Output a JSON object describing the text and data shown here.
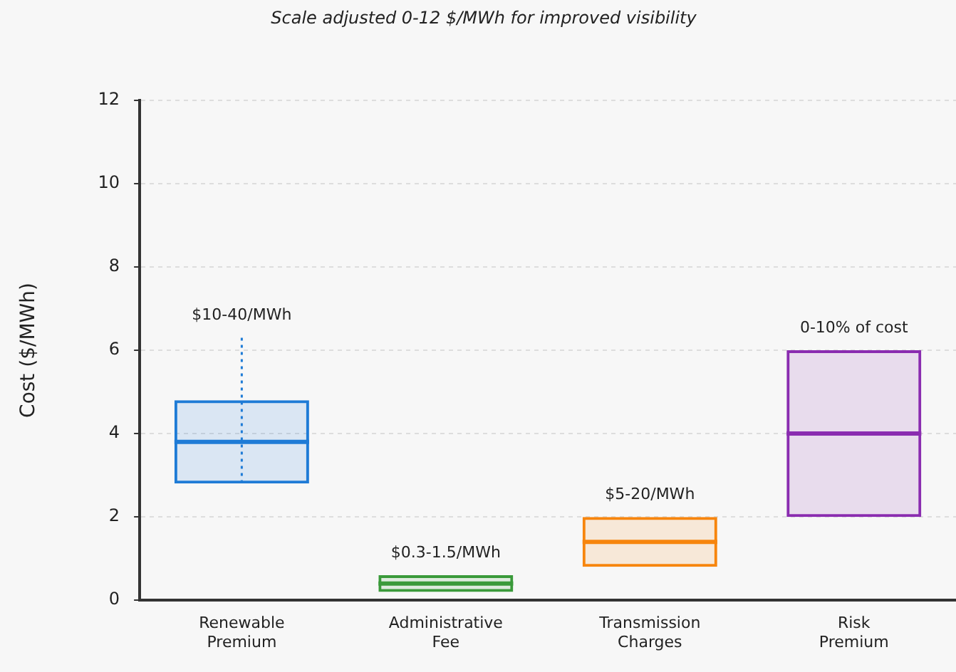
{
  "chart_data": {
    "type": "box",
    "subtitle": "Scale adjusted 0-12 $/MWh for improved visibility",
    "ylabel": "Cost ($/MWh)",
    "categories": [
      "Renewable Premium",
      "Administrative Fee",
      "Transmission Charges",
      "Risk Premium"
    ],
    "boxes": [
      {
        "low": 2.8,
        "q1": 2.8,
        "median": 3.8,
        "q3": 4.8,
        "high": 6.3
      },
      {
        "low": 0.2,
        "q1": 0.2,
        "median": 0.4,
        "q3": 0.6,
        "high": 0.6
      },
      {
        "low": 0.8,
        "q1": 0.8,
        "median": 1.4,
        "q3": 2.0,
        "high": 2.0
      },
      {
        "low": 2.0,
        "q1": 2.0,
        "median": 4.0,
        "q3": 6.0,
        "high": 6.0
      }
    ],
    "colors": [
      "#1e7bd6",
      "#3a9a3a",
      "#f7850d",
      "#8a2cb0"
    ],
    "ylim": [
      0,
      12
    ],
    "yticks": [
      0,
      2,
      4,
      6,
      8,
      10,
      12
    ],
    "grid": "y",
    "annotations": [
      {
        "text": "$10-40/MWh",
        "x": "Renewable Premium",
        "y": 6.3
      },
      {
        "text": "$0.3-1.5/MWh",
        "x": "Administrative Fee",
        "y": 0.6
      },
      {
        "text": "$5-20/MWh",
        "x": "Transmission Charges",
        "y": 2.0
      },
      {
        "text": "0-10% of cost",
        "x": "Risk Premium",
        "y": 6.0
      }
    ]
  }
}
